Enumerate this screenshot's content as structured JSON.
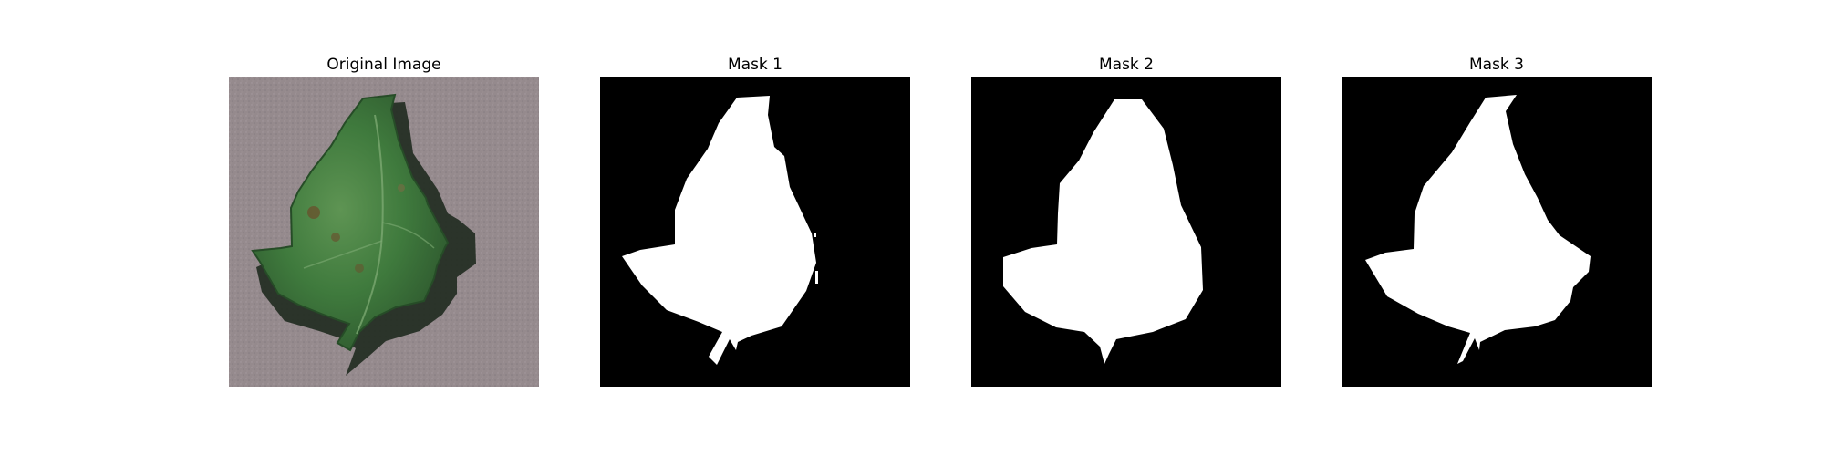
{
  "panels": [
    {
      "title": "Original Image",
      "kind": "photo"
    },
    {
      "title": "Mask 1",
      "kind": "mask"
    },
    {
      "title": "Mask 2",
      "kind": "mask"
    },
    {
      "title": "Mask 3",
      "kind": "mask"
    }
  ],
  "colors": {
    "background": "#ffffff",
    "mask_background": "#000000",
    "mask_foreground": "#ffffff",
    "photo_background": "#958a8d",
    "leaf_dark": "#2f5a2f",
    "leaf_mid": "#3f7a3d",
    "leaf_light": "#5e9453",
    "leaf_shadow": "#1f2a1f",
    "text": "#000000"
  }
}
